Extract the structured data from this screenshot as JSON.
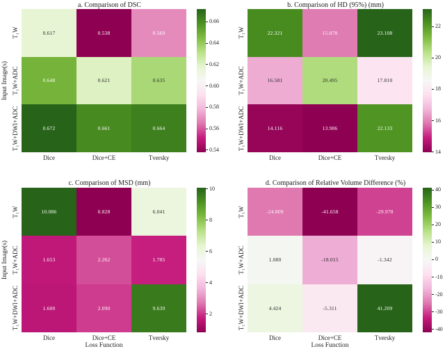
{
  "figure": {
    "background": "#ffffff",
    "text_color": "#1a1a1a",
    "xlabel": "Loss Function",
    "ylabel": "Input Image(s)"
  },
  "colormap": {
    "name": "PiYG",
    "stops": [
      "#8e0152",
      "#c51b7d",
      "#de77ae",
      "#f1b6da",
      "#fde0ef",
      "#f7f7f7",
      "#e6f5d0",
      "#b8e186",
      "#7fbc41",
      "#4d9221",
      "#276419"
    ]
  },
  "chart_data": [
    {
      "id": "a",
      "type": "heatmap",
      "title": "a. Comparison of DSC",
      "x_categories": [
        "Dice",
        "Dice+CE",
        "Tversky"
      ],
      "y_categories": [
        "T₁W",
        "T₁W+ADC",
        "T₁W+DWI+ADC"
      ],
      "values": [
        [
          0.617,
          0.538,
          0.569
        ],
        [
          0.648,
          0.621,
          0.635
        ],
        [
          0.672,
          0.661,
          0.664
        ]
      ],
      "vmin": 0.538,
      "vmax": 0.672,
      "colorbar_ticks": [
        0.66,
        0.64,
        0.62,
        0.6,
        0.58,
        0.56,
        0.54
      ],
      "colorbar_tick_decimals": 2,
      "value_decimals": 3,
      "show_ylabel": true,
      "show_xlabel": false
    },
    {
      "id": "b",
      "type": "heatmap",
      "title": "b. Comparison of HD (95%) (mm)",
      "x_categories": [
        "Dice",
        "Dice+CE",
        "Tversky"
      ],
      "y_categories": [
        "T₁W",
        "T₁W+ADC",
        "T₁W+DWI+ADC"
      ],
      "values": [
        [
          22.321,
          15.878,
          23.108
        ],
        [
          16.581,
          20.495,
          17.81
        ],
        [
          14.116,
          13.986,
          22.133
        ]
      ],
      "vmin": 13.986,
      "vmax": 23.108,
      "colorbar_ticks": [
        22,
        20,
        18,
        16,
        14
      ],
      "colorbar_tick_decimals": 0,
      "value_decimals": 3,
      "show_ylabel": false,
      "show_xlabel": false
    },
    {
      "id": "c",
      "type": "heatmap",
      "title": "c. Comparison of MSD (mm)",
      "x_categories": [
        "Dice",
        "Dice+CE",
        "Tversky"
      ],
      "y_categories": [
        "T₁W",
        "T₁W+ADC",
        "T₁W+DWI+ADC"
      ],
      "values": [
        [
          10.086,
          0.828,
          6.041
        ],
        [
          1.653,
          2.262,
          1.785
        ],
        [
          1.6,
          2.09,
          9.639
        ]
      ],
      "vmin": 0.828,
      "vmax": 10.086,
      "colorbar_ticks": [
        10,
        8,
        6,
        4,
        2
      ],
      "colorbar_tick_decimals": 0,
      "value_decimals": 3,
      "show_ylabel": true,
      "show_xlabel": true
    },
    {
      "id": "d",
      "type": "heatmap",
      "title": "d. Comparison of Relative Volume Difference (%)",
      "x_categories": [
        "Dice",
        "Dice+CE",
        "Tversky"
      ],
      "y_categories": [
        "T₁W",
        "T₁W+ADC",
        "T₁W+DWI+ADC"
      ],
      "values": [
        [
          -24.809,
          -41.658,
          -29.978
        ],
        [
          1.08,
          -18.015,
          -1.342
        ],
        [
          4.424,
          -5.311,
          41.209
        ]
      ],
      "vmin": -41.658,
      "vmax": 41.209,
      "colorbar_ticks": [
        40,
        30,
        20,
        10,
        0,
        -10,
        -20,
        -30,
        -40
      ],
      "colorbar_tick_decimals": 0,
      "value_decimals": 3,
      "show_ylabel": false,
      "show_xlabel": true
    }
  ]
}
